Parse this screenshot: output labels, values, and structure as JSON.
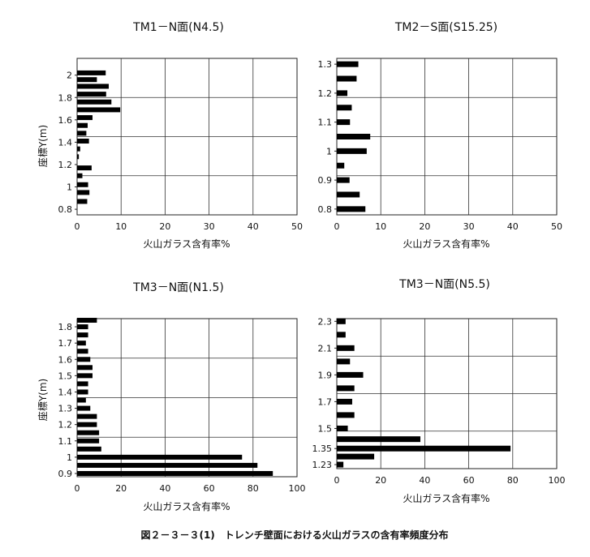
{
  "figure": {
    "caption": "図２－３－３(1)　トレンチ壁面における火山ガラスの含有率頻度分布"
  },
  "chart_data": [
    {
      "type": "bar",
      "orientation": "horizontal",
      "title": "TM1－N面(N4.5)",
      "xlabel": "火山ガラス含有率%",
      "ylabel": "座標Y(m)",
      "xlim": [
        0,
        50
      ],
      "ylim": [
        0.75,
        2.15
      ],
      "xticks": [
        0,
        10,
        20,
        30,
        40,
        50
      ],
      "yticks": [
        0.8,
        1,
        1.2,
        1.4,
        1.6,
        1.8,
        2
      ],
      "ytick_labels": [
        "0.8",
        "1",
        "1.2",
        "1.4",
        "1.6",
        "1.8",
        "2"
      ],
      "grid": true,
      "bar_color": "#000000",
      "y": [
        0.87,
        0.95,
        1.02,
        1.1,
        1.17,
        1.27,
        1.34,
        1.41,
        1.48,
        1.55,
        1.62,
        1.69,
        1.76,
        1.83,
        1.9,
        1.96,
        2.02
      ],
      "values": [
        2.3,
        2.8,
        2.5,
        1.2,
        3.3,
        0.4,
        0.7,
        2.7,
        2.1,
        2.4,
        3.5,
        9.8,
        7.8,
        6.6,
        7.2,
        4.5,
        6.5
      ]
    },
    {
      "type": "bar",
      "orientation": "horizontal",
      "title": "TM2－S面(S15.25)",
      "xlabel": "火山ガラス含有率%",
      "ylabel": "",
      "xlim": [
        0,
        50
      ],
      "ylim": [
        0.78,
        1.32
      ],
      "xticks": [
        0,
        10,
        20,
        30,
        40,
        50
      ],
      "yticks": [
        0.8,
        0.9,
        1,
        1.1,
        1.2,
        1.3
      ],
      "ytick_labels": [
        "0.8",
        "0.9",
        "1",
        "1.1",
        "1.2",
        "1.3"
      ],
      "grid": true,
      "bar_color": "#000000",
      "y": [
        0.8,
        0.85,
        0.9,
        0.95,
        1.0,
        1.05,
        1.1,
        1.15,
        1.2,
        1.25,
        1.3
      ],
      "values": [
        6.5,
        5.2,
        2.9,
        1.7,
        6.8,
        7.6,
        3.0,
        3.4,
        2.4,
        4.5,
        4.9
      ]
    },
    {
      "type": "bar",
      "orientation": "horizontal",
      "title": "TM3－N面(N1.5)",
      "xlabel": "火山ガラス含有率%",
      "ylabel": "座標Y(m)",
      "xlim": [
        0,
        100
      ],
      "ylim": [
        0.88,
        1.85
      ],
      "xticks": [
        0,
        20,
        40,
        60,
        80,
        100
      ],
      "yticks": [
        0.9,
        1,
        1.1,
        1.2,
        1.3,
        1.4,
        1.5,
        1.6,
        1.7,
        1.8
      ],
      "ytick_labels": [
        "0.9",
        "1",
        "1.1",
        "1.2",
        "1.3",
        "1.4",
        "1.5",
        "1.6",
        "1.7",
        "1.8"
      ],
      "grid": true,
      "bar_color": "#000000",
      "y": [
        0.9,
        0.95,
        1.0,
        1.05,
        1.1,
        1.15,
        1.2,
        1.25,
        1.3,
        1.35,
        1.4,
        1.45,
        1.5,
        1.55,
        1.6,
        1.65,
        1.7,
        1.75,
        1.8,
        1.84
      ],
      "values": [
        89,
        82,
        75,
        11,
        10,
        10,
        9,
        9,
        6,
        4,
        5,
        5,
        7,
        7,
        6,
        5,
        4,
        5,
        5,
        9
      ]
    },
    {
      "type": "bar",
      "orientation": "horizontal",
      "title": "TM3－N面(N5.5)",
      "xlabel": "火山ガラス含有率%",
      "ylabel": "",
      "xlim": [
        0,
        100
      ],
      "ylim": [
        1.2,
        2.32
      ],
      "xticks": [
        0,
        20,
        40,
        60,
        80,
        100
      ],
      "yticks": [
        1.23,
        1.35,
        1.5,
        1.7,
        1.9,
        2.1,
        2.3
      ],
      "ytick_labels": [
        "1.23",
        "1.35",
        "1.5",
        "1.7",
        "1.9",
        "2.1",
        "2.3"
      ],
      "grid": true,
      "bar_color": "#000000",
      "y": [
        1.23,
        1.29,
        1.35,
        1.42,
        1.5,
        1.6,
        1.7,
        1.8,
        1.9,
        2.0,
        2.1,
        2.2,
        2.3
      ],
      "values": [
        3,
        17,
        79,
        38,
        5,
        8,
        7,
        8,
        12,
        6,
        8,
        4,
        4
      ]
    }
  ]
}
